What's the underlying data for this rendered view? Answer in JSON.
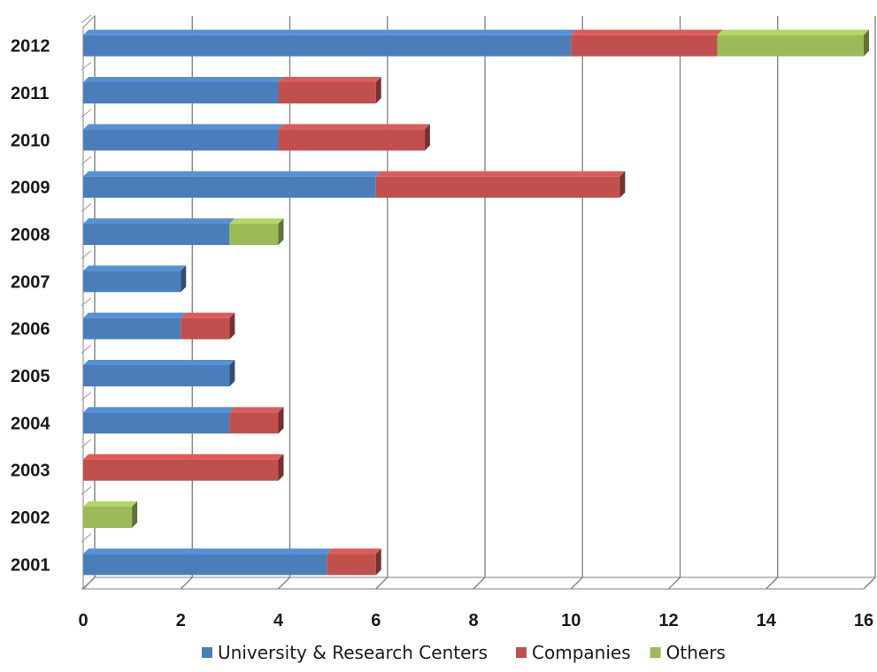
{
  "chart_data": {
    "type": "bar",
    "orientation": "horizontal",
    "stacked": true,
    "style": "3d",
    "categories": [
      "2001",
      "2002",
      "2003",
      "2004",
      "2005",
      "2006",
      "2007",
      "2008",
      "2009",
      "2010",
      "2011",
      "2012"
    ],
    "series": [
      {
        "name": "University & Research Centers",
        "color": "#4a7ebb",
        "values": [
          5,
          0,
          0,
          3,
          3,
          2,
          2,
          3,
          6,
          4,
          4,
          10
        ]
      },
      {
        "name": "Companies",
        "color": "#c0504d",
        "values": [
          1,
          0,
          4,
          1,
          0,
          1,
          0,
          0,
          5,
          3,
          2,
          3
        ]
      },
      {
        "name": "Others",
        "color": "#9bbb59",
        "values": [
          0,
          1,
          0,
          0,
          0,
          0,
          0,
          1,
          0,
          0,
          0,
          3
        ]
      }
    ],
    "x_ticks": [
      "0",
      "2",
      "4",
      "6",
      "8",
      "10",
      "12",
      "14",
      "16"
    ],
    "xlim": [
      0,
      16
    ],
    "title": "",
    "xlabel": "",
    "ylabel": "",
    "grid": true,
    "legend_position": "bottom"
  }
}
